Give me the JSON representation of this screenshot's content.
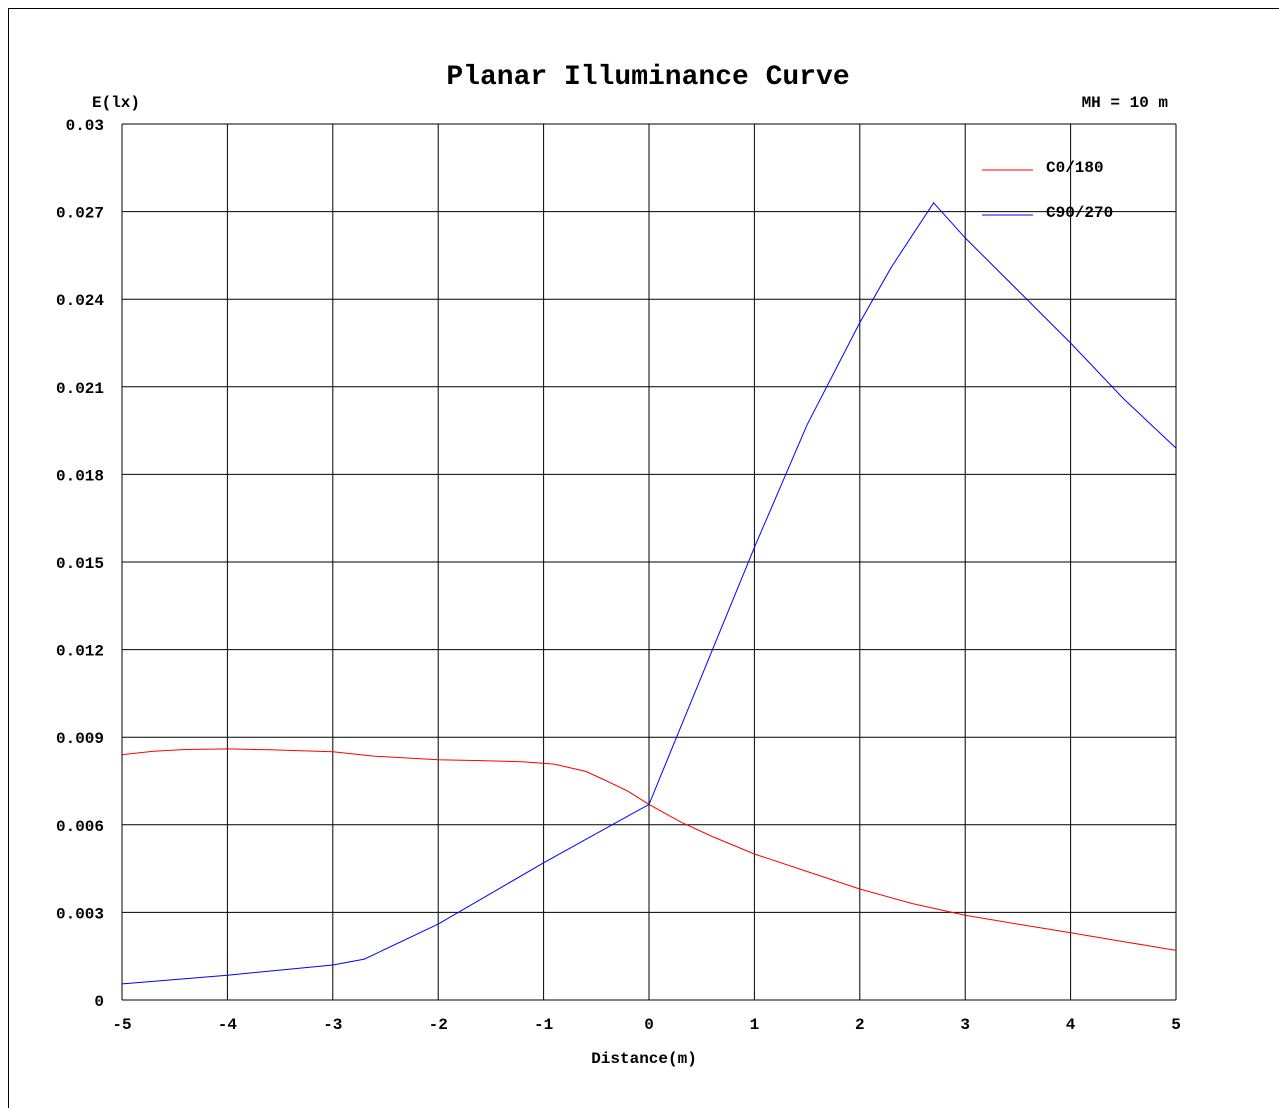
{
  "chart_data": {
    "type": "line",
    "title": "Planar Illuminance Curve",
    "ylabel": "E(lx)",
    "xlabel": "Distance(m)",
    "annotation": "MH = 10 m",
    "xlim": [
      -5,
      5
    ],
    "ylim": [
      0,
      0.03
    ],
    "x_ticks": [
      -5,
      -4,
      -3,
      -2,
      -1,
      0,
      1,
      2,
      3,
      4,
      5
    ],
    "x_tick_labels": [
      "-5",
      "-4",
      "-3",
      "-2",
      "-1",
      "0",
      "1",
      "2",
      "3",
      "4",
      "5"
    ],
    "y_ticks": [
      0,
      0.003,
      0.006,
      0.009,
      0.012,
      0.015,
      0.018,
      0.021,
      0.024,
      0.027,
      0.03
    ],
    "y_tick_labels": [
      "0",
      "0.003",
      "0.006",
      "0.009",
      "0.012",
      "0.015",
      "0.018",
      "0.021",
      "0.024",
      "0.027",
      "0.03"
    ],
    "grid": true,
    "legend_position": "top-right",
    "series": [
      {
        "name": "C0/180",
        "color": "#ff0000",
        "x": [
          -5,
          -4.7,
          -4.4,
          -4,
          -3.6,
          -3,
          -2.6,
          -2,
          -1.6,
          -1.2,
          -0.9,
          -0.6,
          -0.4,
          -0.2,
          0,
          0.3,
          0.6,
          1,
          1.5,
          2,
          2.5,
          3,
          3.5,
          4,
          4.5,
          5
        ],
        "values": [
          0.0084,
          0.00852,
          0.00858,
          0.0086,
          0.00857,
          0.0085,
          0.00835,
          0.00823,
          0.0082,
          0.00816,
          0.00808,
          0.00783,
          0.0075,
          0.00715,
          0.0067,
          0.0061,
          0.0056,
          0.005,
          0.0044,
          0.0038,
          0.0033,
          0.0029,
          0.0026,
          0.0023,
          0.002,
          0.0017
        ]
      },
      {
        "name": "C90/270",
        "color": "#0000ff",
        "x": [
          -5,
          -4,
          -3,
          -2.7,
          -2,
          -1,
          0,
          0.5,
          1,
          1.5,
          2,
          2.3,
          2.7,
          3,
          3.5,
          4,
          4.5,
          5
        ],
        "values": [
          0.00055,
          0.00085,
          0.0012,
          0.0014,
          0.0026,
          0.0047,
          0.0067,
          0.0111,
          0.0155,
          0.0197,
          0.0232,
          0.0251,
          0.0273,
          0.0261,
          0.0243,
          0.0225,
          0.0206,
          0.0189
        ]
      }
    ]
  }
}
